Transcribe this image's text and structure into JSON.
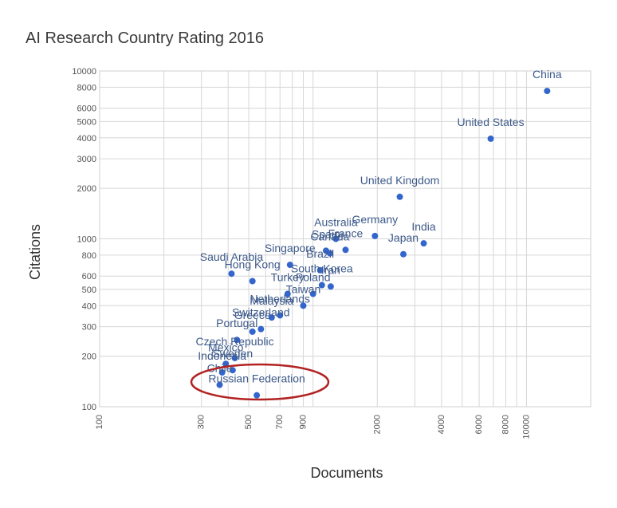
{
  "chart_data": {
    "type": "scatter",
    "title": "AI Research Country Rating 2016",
    "xlabel": "Documents",
    "ylabel": "Citations",
    "xscale": "log",
    "yscale": "log",
    "xlim": [
      100,
      20000
    ],
    "ylim": [
      100,
      10000
    ],
    "grid": true,
    "x_ticks": [
      100,
      300,
      500,
      700,
      900,
      2000,
      4000,
      6000,
      8000,
      10000
    ],
    "y_ticks": [
      100,
      200,
      300,
      400,
      500,
      600,
      800,
      1000,
      2000,
      3000,
      4000,
      5000,
      6000,
      8000,
      10000
    ],
    "point_color": "#3366cc",
    "highlight_color": "#b22222",
    "highlighted_point": "Russian Federation",
    "points": [
      {
        "label": "China",
        "x": 12500,
        "y": 7600
      },
      {
        "label": "United States",
        "x": 6800,
        "y": 3950
      },
      {
        "label": "United Kingdom",
        "x": 2550,
        "y": 1780
      },
      {
        "label": "India",
        "x": 3300,
        "y": 940
      },
      {
        "label": "Japan",
        "x": 2650,
        "y": 810
      },
      {
        "label": "Germany",
        "x": 1950,
        "y": 1040
      },
      {
        "label": "Australia",
        "x": 1280,
        "y": 1000
      },
      {
        "label": "France",
        "x": 1420,
        "y": 860
      },
      {
        "label": "Spain",
        "x": 1150,
        "y": 850
      },
      {
        "label": "Canada",
        "x": 1200,
        "y": 820
      },
      {
        "label": "Iran",
        "x": 1210,
        "y": 520
      },
      {
        "label": "Brazil",
        "x": 1080,
        "y": 650
      },
      {
        "label": "Singapore",
        "x": 780,
        "y": 700
      },
      {
        "label": "Saudi Arabia",
        "x": 415,
        "y": 620
      },
      {
        "label": "Hong Kong",
        "x": 520,
        "y": 560
      },
      {
        "label": "Poland",
        "x": 1000,
        "y": 470
      },
      {
        "label": "South Korea",
        "x": 1100,
        "y": 530
      },
      {
        "label": "Taiwan",
        "x": 900,
        "y": 400
      },
      {
        "label": "Turkey",
        "x": 760,
        "y": 470
      },
      {
        "label": "Malaysia",
        "x": 640,
        "y": 340
      },
      {
        "label": "Netherlands",
        "x": 700,
        "y": 350
      },
      {
        "label": "Switzerland",
        "x": 570,
        "y": 290
      },
      {
        "label": "Portugal",
        "x": 440,
        "y": 250
      },
      {
        "label": "Greece",
        "x": 520,
        "y": 280
      },
      {
        "label": "Czech Republic",
        "x": 430,
        "y": 195
      },
      {
        "label": "Mexico",
        "x": 390,
        "y": 180
      },
      {
        "label": "Sweden",
        "x": 420,
        "y": 165
      },
      {
        "label": "Indonesia",
        "x": 375,
        "y": 160
      },
      {
        "label": "Russian Federation",
        "x": 545,
        "y": 117
      },
      {
        "label": "Chile",
        "x": 365,
        "y": 135
      }
    ]
  }
}
